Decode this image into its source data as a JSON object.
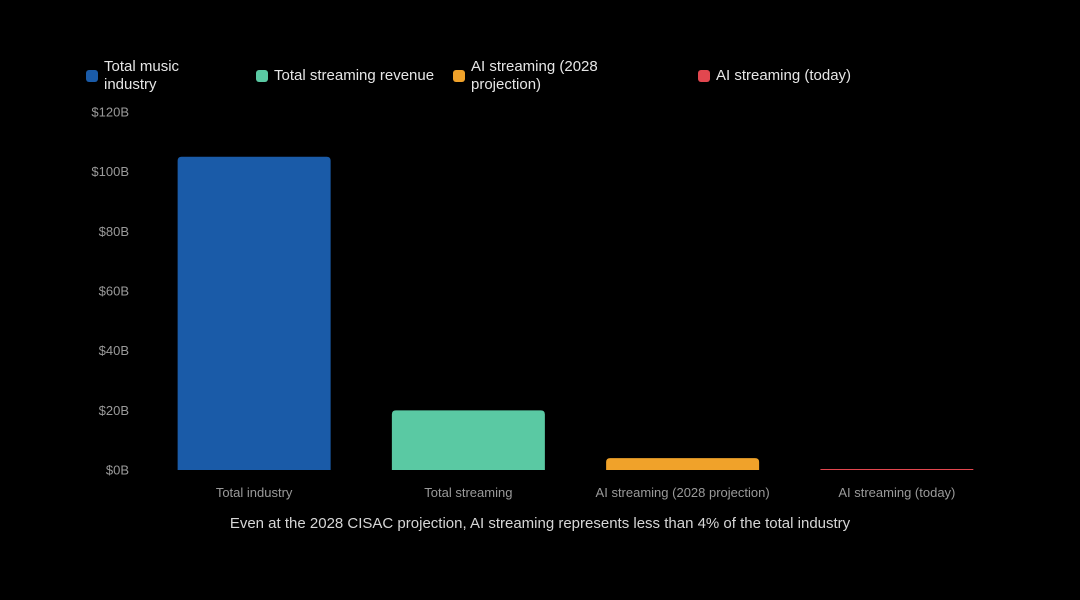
{
  "chart_data": {
    "type": "bar",
    "title": "",
    "xlabel": "",
    "ylabel": "",
    "ylim": [
      0,
      120
    ],
    "y_ticks": [
      0,
      20,
      40,
      60,
      80,
      100,
      120
    ],
    "y_tick_labels": [
      "$0B",
      "$20B",
      "$40B",
      "$60B",
      "$80B",
      "$100B",
      "$120B"
    ],
    "grid": false,
    "legend_position": "top",
    "categories": [
      "Total industry",
      "Total streaming",
      "AI streaming (2028 projection)",
      "AI streaming (today)"
    ],
    "values": [
      105,
      20,
      4,
      0.3
    ],
    "series": [
      {
        "name": "Total music industry",
        "color": "#1a5ba8",
        "value": 105
      },
      {
        "name": "Total streaming revenue",
        "color": "#5ac9a3",
        "value": 20
      },
      {
        "name": "AI streaming (2028 projection)",
        "color": "#f0a22a",
        "value": 4
      },
      {
        "name": "AI streaming (today)",
        "color": "#e2474f",
        "value": 0.3
      }
    ],
    "legend": {
      "item0_line1": "Total music",
      "item0_line2": "industry",
      "item1": "Total streaming revenue",
      "item2_line1": "AI streaming (2028",
      "item2_line2": "projection)",
      "item3": "AI streaming (today)"
    },
    "caption": "Even at the 2028 CISAC projection, AI streaming represents less than 4% of the total industry"
  }
}
